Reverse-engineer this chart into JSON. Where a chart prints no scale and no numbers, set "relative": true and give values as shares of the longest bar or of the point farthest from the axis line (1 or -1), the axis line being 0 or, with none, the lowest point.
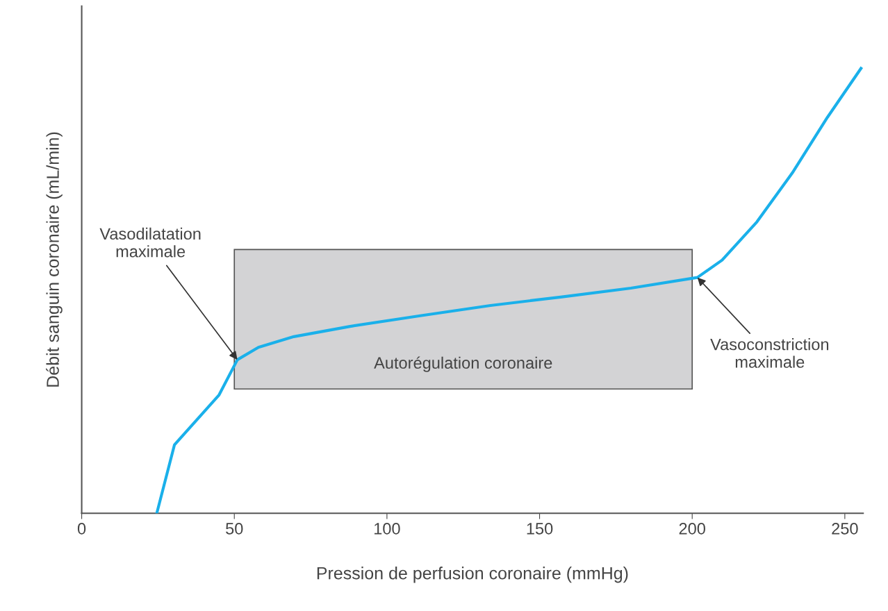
{
  "chart_data": {
    "type": "line",
    "relative": true,
    "xlabel": "Pression de perfusion coronaire (mmHg)",
    "ylabel": "Débit sanguin coronaire (mL/min)",
    "x": [
      24.6,
      30.4,
      45,
      51,
      57.9,
      69.5,
      87.9,
      110.9,
      133.9,
      156.9,
      179.9,
      201.7,
      209.8,
      221.2,
      232.8,
      244.3,
      255.3
    ],
    "series": [
      {
        "color": "#1ab0ea",
        "values": [
          0,
          0.154,
          0.266,
          0.345,
          0.373,
          0.397,
          0.42,
          0.444,
          0.467,
          0.486,
          0.506,
          0.53,
          0.569,
          0.655,
          0.765,
          0.89,
          1.0
        ]
      }
    ],
    "xlim": [
      0,
      256
    ],
    "xticks": [
      0,
      50,
      100,
      150,
      200,
      250
    ],
    "bands": [
      {
        "axis": "x",
        "from": 50,
        "to": 200,
        "label": "Autorégulation coronaire",
        "color": "#d3d3d5"
      }
    ],
    "annotations": [
      {
        "text": "Vasodilatation\nmaximale",
        "x": 51,
        "y": 0.345
      },
      {
        "text": "Vasoconstriction\nmaximale",
        "x": 201.7,
        "y": 0.53
      }
    ],
    "grid": false,
    "legend": false,
    "marker": "none",
    "line_style": "solid"
  }
}
